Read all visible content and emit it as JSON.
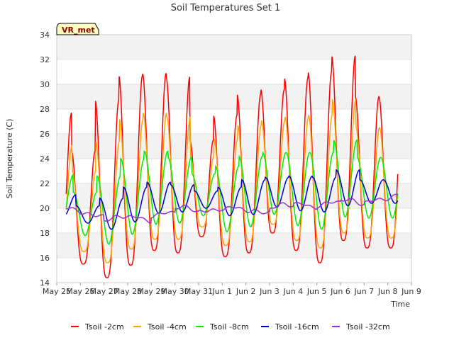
{
  "chart_data": {
    "type": "line",
    "title": "Soil Temperatures Set 1",
    "xlabel": "Time",
    "ylabel": "Soil Temperature (C)",
    "ylim": [
      14,
      34
    ],
    "xlim": [
      "May 25",
      "Jun 9"
    ],
    "x_ticks": [
      "May 25",
      "May 26",
      "May 27",
      "May 28",
      "May 29",
      "May 30",
      "May 31",
      "Jun 1",
      "Jun 2",
      "Jun 3",
      "Jun 4",
      "Jun 5",
      "Jun 6",
      "Jun 7",
      "Jun 8",
      "Jun 9"
    ],
    "y_ticks": [
      14,
      16,
      18,
      20,
      22,
      24,
      26,
      28,
      30,
      32,
      34
    ],
    "grid": "horizontal bands",
    "legend_position": "bottom",
    "station_label": "VR_met",
    "series": [
      {
        "name": "Tsoil -2cm",
        "color": "#ff0000",
        "highs": [
          27.7,
          24.6,
          28.7,
          30.7,
          30.9,
          30.6,
          25.5,
          27.5,
          29.2,
          29.6,
          30.5,
          31.0,
          32.3,
          29.0
        ],
        "lows": [
          16.5,
          15.5,
          14.4,
          15.4,
          16.6,
          16.4,
          17.7,
          16.1,
          16.4,
          18.0,
          16.6,
          15.6,
          17.4,
          16.8
        ]
      },
      {
        "name": "Tsoil -4cm",
        "color": "#ffa500",
        "highs": [
          25.1,
          23.0,
          25.4,
          27.2,
          27.7,
          27.4,
          24.2,
          25.6,
          26.7,
          27.1,
          27.4,
          27.5,
          28.8,
          26.5
        ],
        "lows": [
          17.3,
          16.5,
          15.6,
          16.7,
          17.5,
          17.5,
          18.5,
          17.0,
          17.3,
          18.7,
          17.4,
          16.8,
          18.0,
          17.6
        ]
      },
      {
        "name": "Tsoil -8cm",
        "color": "#00ee00",
        "highs": [
          22.7,
          21.3,
          22.6,
          24.0,
          24.6,
          24.1,
          22.8,
          23.4,
          24.2,
          24.5,
          24.5,
          24.5,
          25.5,
          24.1
        ],
        "lows": [
          18.7,
          17.8,
          17.1,
          17.9,
          18.7,
          18.8,
          19.4,
          18.1,
          18.5,
          19.5,
          18.6,
          18.3,
          19.3,
          19.2
        ]
      },
      {
        "name": "Tsoil -16cm",
        "color": "#0000cc",
        "highs": [
          21.1,
          20.2,
          20.8,
          21.7,
          22.1,
          21.9,
          21.4,
          21.7,
          22.3,
          22.5,
          22.6,
          22.5,
          23.1,
          22.3
        ],
        "lows": [
          19.4,
          18.8,
          18.3,
          18.9,
          19.6,
          19.7,
          20.0,
          19.4,
          19.5,
          20.1,
          19.8,
          19.7,
          20.2,
          20.4
        ]
      },
      {
        "name": "Tsoil -32cm",
        "color": "#9932cc",
        "highs": [
          20.0,
          19.7,
          19.3,
          19.4,
          19.8,
          20.1,
          20.1,
          20.0,
          20.1,
          20.3,
          20.5,
          20.6,
          20.7,
          21.0
        ],
        "lows": [
          19.5,
          19.5,
          19.0,
          19.0,
          19.4,
          19.7,
          19.8,
          19.7,
          19.6,
          19.9,
          20.1,
          20.2,
          20.3,
          20.5
        ]
      }
    ]
  }
}
